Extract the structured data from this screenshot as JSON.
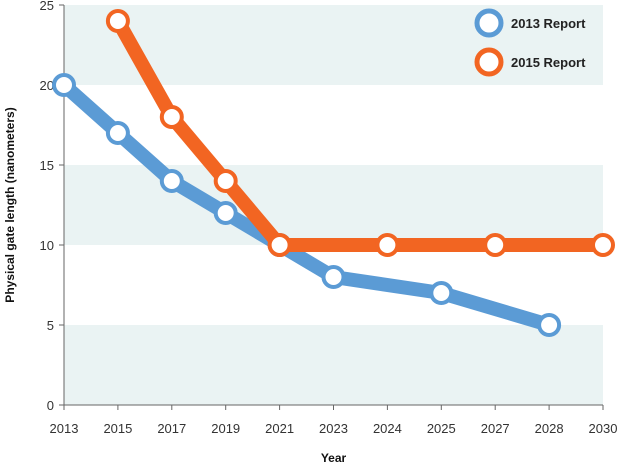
{
  "chart_data": {
    "type": "line",
    "title": "",
    "xlabel": "Year",
    "ylabel": "Physical gate length (nanometers)",
    "categories": [
      "2013",
      "2015",
      "2017",
      "2019",
      "2021",
      "2023",
      "2024",
      "2025",
      "2027",
      "2028",
      "2030"
    ],
    "ylim": [
      0,
      25
    ],
    "yticks": [
      "0",
      "5",
      "10",
      "15",
      "20",
      "25"
    ],
    "grid": "alternating horizontal bands",
    "legend_position": "top-right",
    "series": [
      {
        "name": "2013 Report",
        "color": "#5b9bd5",
        "values": [
          20,
          17,
          14,
          12,
          10,
          8,
          null,
          7,
          null,
          5,
          null
        ]
      },
      {
        "name": "2015 Report",
        "color": "#f26522",
        "values": [
          null,
          24,
          18,
          14,
          10,
          null,
          10,
          null,
          10,
          null,
          10
        ]
      }
    ]
  }
}
